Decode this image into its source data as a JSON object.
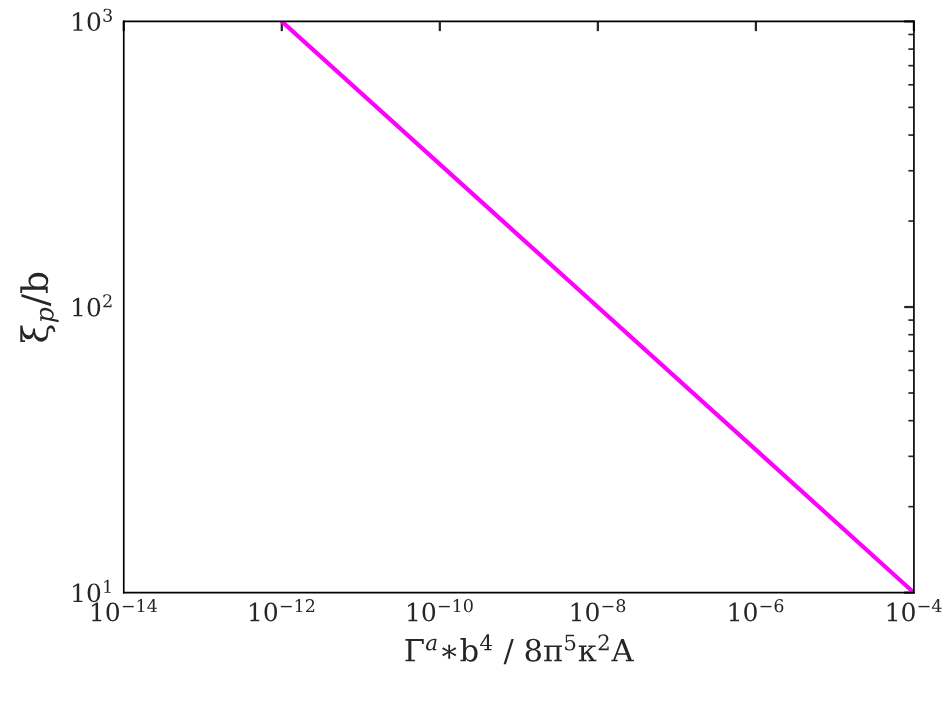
{
  "chart_data": {
    "type": "line",
    "xlabel": "Γ$^{a}$∗b$^{4}$ / 8π$^{5}$κ$^{2}$A",
    "ylabel": "ξ$_{p}$/b",
    "log": "xy",
    "grid": false,
    "line_style": "solid",
    "marker": "none",
    "series": [
      {
        "color": "#ff00ff",
        "x": [
          1e-12,
          0.0001
        ],
        "values": [
          1000,
          10
        ]
      }
    ],
    "xlim": [
      1e-14,
      0.0001
    ],
    "xticks": [
      {
        "value": 1e-14,
        "label": "10$^{−14}$"
      },
      {
        "value": 1e-12,
        "label": "10$^{−12}$"
      },
      {
        "value": 1e-10,
        "label": "10$^{−10}$"
      },
      {
        "value": 1e-08,
        "label": "10$^{−8}$"
      },
      {
        "value": 1e-06,
        "label": "10$^{−6}$"
      },
      {
        "value": 0.0001,
        "label": "10$^{−4}$"
      }
    ],
    "ylim": [
      10,
      1000
    ],
    "yticks": [
      {
        "value": 10,
        "label": "10$^{1}$"
      },
      {
        "value": 100,
        "label": "10$^{2}$"
      },
      {
        "value": 1000,
        "label": "10$^{3}$"
      }
    ]
  }
}
